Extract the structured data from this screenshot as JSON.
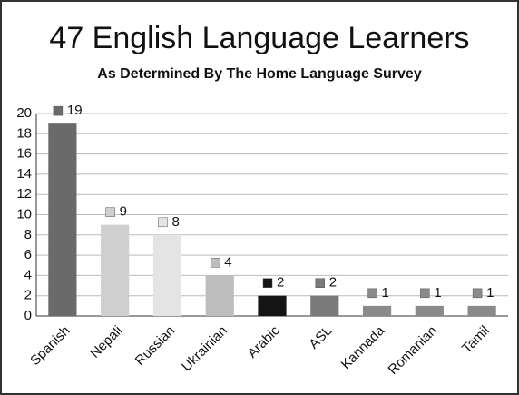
{
  "chart_data": {
    "type": "bar",
    "title": "47 English Language Learners",
    "subtitle": "As Determined By The Home Language Survey",
    "categories": [
      "Spanish",
      "Nepali",
      "Russian",
      "Ukrainian",
      "Arabic",
      "ASL",
      "Kannada",
      "Romanian",
      "Tamil"
    ],
    "values": [
      19,
      9,
      8,
      4,
      2,
      2,
      1,
      1,
      1
    ],
    "colors": [
      "#6a6a6a",
      "#cfcfcf",
      "#e4e4e4",
      "#bdbdbd",
      "#141414",
      "#7a7a7a",
      "#8a8a8a",
      "#8a8a8a",
      "#8a8a8a"
    ],
    "ylim": [
      0,
      20
    ],
    "yticks": [
      0,
      2,
      4,
      6,
      8,
      10,
      12,
      14,
      16,
      18,
      20
    ],
    "grid": true
  }
}
